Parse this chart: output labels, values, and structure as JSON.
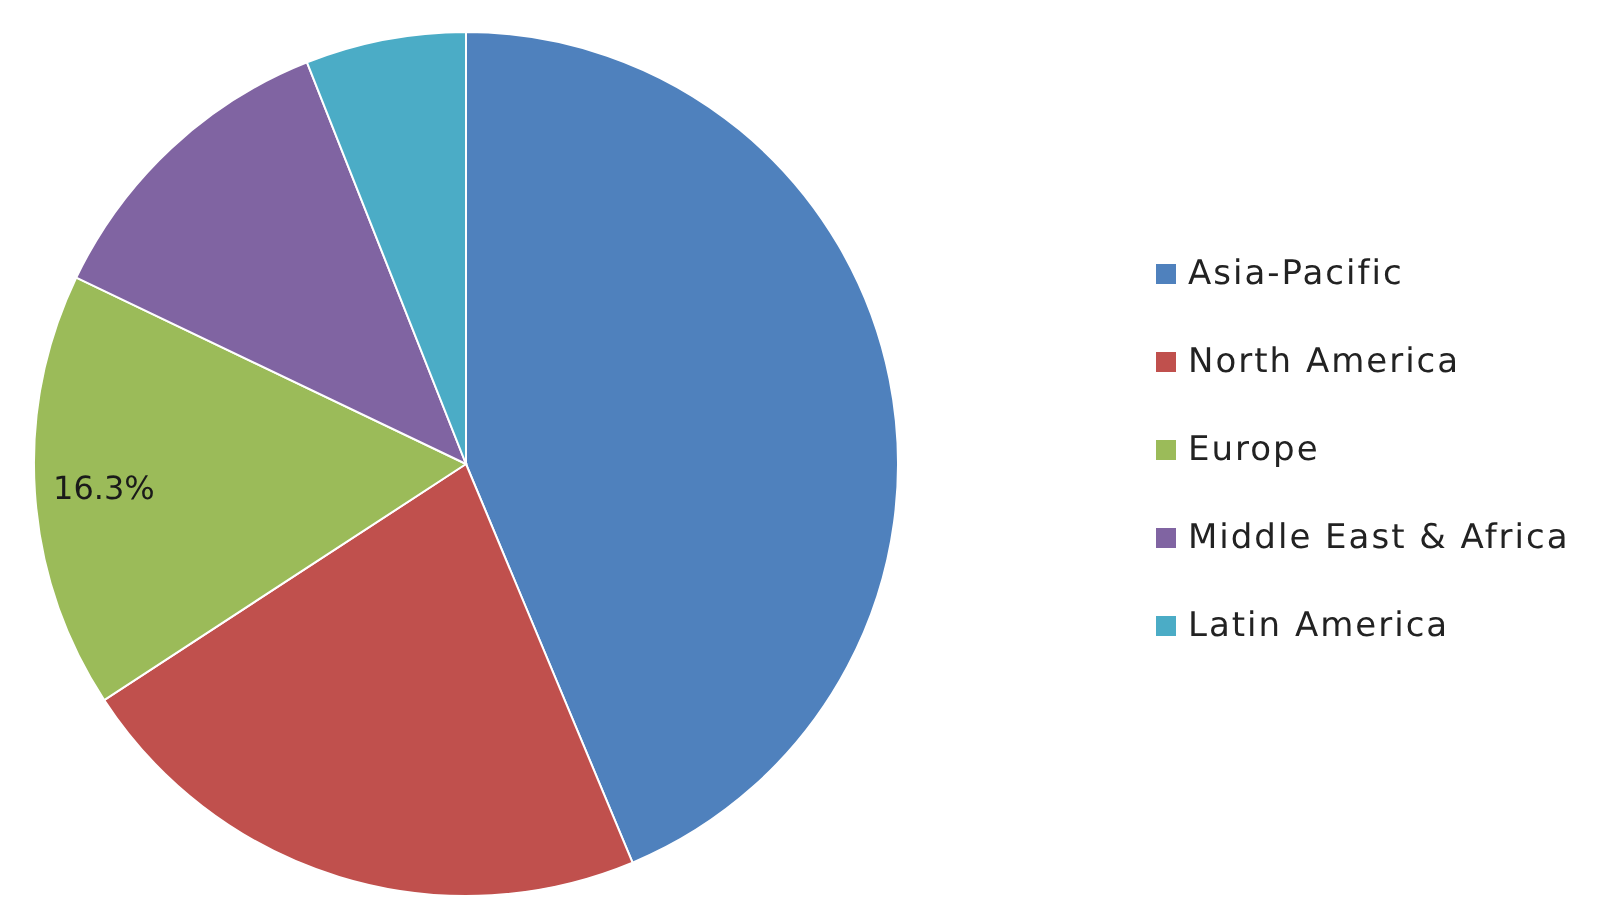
{
  "chart_data": {
    "type": "pie",
    "categories": [
      "Asia-Pacific",
      "North America",
      "Europe",
      "Middle East & Africa",
      "Latin America"
    ],
    "values": [
      43.7,
      22.1,
      16.3,
      11.9,
      6.0
    ],
    "colors": [
      "#4f81bd",
      "#c0504d",
      "#9bbb59",
      "#8064a2",
      "#4bacc6"
    ],
    "value_labels": [
      null,
      null,
      "16.3%",
      null,
      null
    ],
    "legend": "right"
  }
}
